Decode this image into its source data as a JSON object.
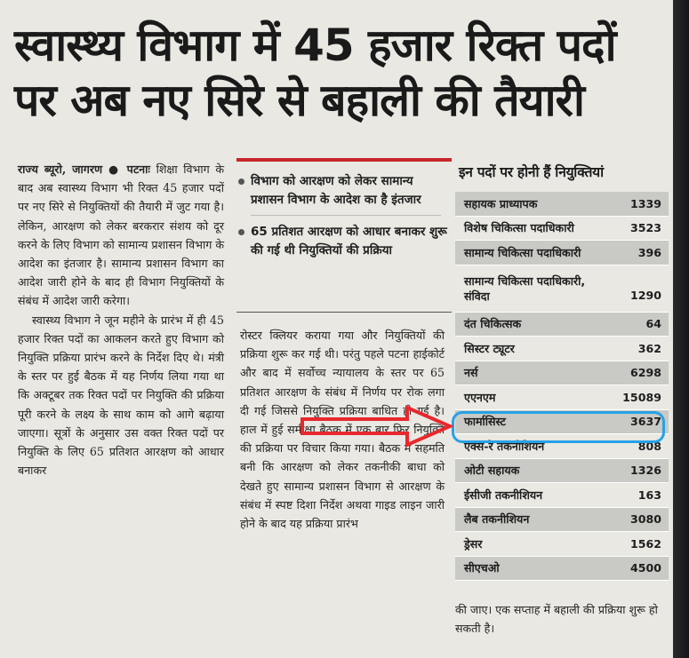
{
  "headline": {
    "line1": "स्वास्थ्य विभाग में 45 हजार रिक्त पदों",
    "line2": "पर अब नए सिरे से बहाली की तैयारी"
  },
  "article": {
    "byline": "राज्य ब्यूरो, जागरण ● पटनाः",
    "para1": "शिक्षा विभाग के बाद अब स्वास्थ्य विभाग भी रिक्त 45 हजार पदों पर नए सिरे से नियुक्तियों की तैयारी में जुट गया है। लेकिन, आरक्षण को लेकर बरकरार संशय को दूर करने के लिए विभाग को सामान्य प्रशासन विभाग के आदेश का इंतजार है। सामान्य प्रशासन विभाग का आदेश जारी होने के बाद ही विभाग नियुक्तियों के संबंध में आदेश जारी करेगा।",
    "para2": "स्वास्थ्य विभाग ने जून महीने के प्रारंभ में ही 45 हजार रिक्त पदों का आकलन करते हुए विभाग को नियुक्ति प्रक्रिया प्रारंभ करने के निर्देश दिए थे। मंत्री के स्तर पर हुई बैठक में यह निर्णय लिया गया था कि अक्टूबर तक रिक्त पदों पर नियुक्ति की प्रक्रिया पूरी करने के लक्ष्य के साथ काम को आगे बढ़ाया जाएगा। सूत्रों के अनुसार उस वक्त रिक्त पदों पर नियुक्ति के लिए 65 प्रतिशत आरक्षण को आधार बनाकर",
    "col2": "रोस्टर क्लियर कराया गया और नियुक्तियों की प्रक्रिया शुरू कर गई थी। परंतु पहले पटना हाईकोर्ट और बाद में सर्वोच्च न्यायालय के स्तर पर 65 प्रतिशत आरक्षण के संबंध में निर्णय पर रोक लगा दी गई जिससे नियुक्ति प्रक्रिया बाधित हो गई है। हाल में हुई समीक्षा बैठक में एक बार फिर नियुक्ति की प्रक्रिया पर विचार किया गया। बैठक में सहमति बनी कि आरक्षण को लेकर तकनीकी बाधा को देखते हुए सामान्य प्रशासन विभाग से आरक्षण के संबंध में स्पष्ट दिशा निर्देश अथवा गाइड लाइन जारी होने के बाद यह प्रक्रिया प्रारंभ",
    "col3_end": "की जाए। एक सप्ताह में बहाली की प्रक्रिया शुरू हो सकती है।"
  },
  "highlights": [
    "विभाग को आरक्षण को लेकर सामान्य प्रशासन विभाग के आदेश का है इंतजार",
    "65 प्रतिशत आरक्षण को आधार बनाकर शुरू की गई थी नियुक्तियों की प्रक्रिया"
  ],
  "table": {
    "title": "इन पदों पर होनी हैं नियुक्तियां",
    "rows": [
      {
        "post": "सहायक प्राध्यापक",
        "count": "1339"
      },
      {
        "post": "विशेष चिकित्सा पदाधिकारी",
        "count": "3523"
      },
      {
        "post": "सामान्य चिकित्सा पदाधिकारी",
        "count": "396"
      },
      {
        "post": "सामान्य चिकित्सा पदाधिकारी,",
        "post2": "संविदा",
        "count": "1290"
      },
      {
        "post": "दंत चिकित्सक",
        "count": "64"
      },
      {
        "post": "सिस्टर ट्यूटर",
        "count": "362"
      },
      {
        "post": "नर्स",
        "count": "6298"
      },
      {
        "post": "एएनएम",
        "count": "15089"
      },
      {
        "post": "फार्मासिस्ट",
        "count": "3637"
      },
      {
        "post": "एक्स-रे तकनीशियन",
        "count": "808"
      },
      {
        "post": "ओटी सहायक",
        "count": "1326"
      },
      {
        "post": "ईसीजी तकनीशियन",
        "count": "163"
      },
      {
        "post": "लैब तकनीशियन",
        "count": "3080"
      },
      {
        "post": "ड्रेसर",
        "count": "1562"
      },
      {
        "post": "सीएचओ",
        "count": "4500"
      }
    ]
  },
  "colors": {
    "highlight_ring": "#27a1e6",
    "arrow": "#e8282e",
    "rule": "#c8262b"
  }
}
